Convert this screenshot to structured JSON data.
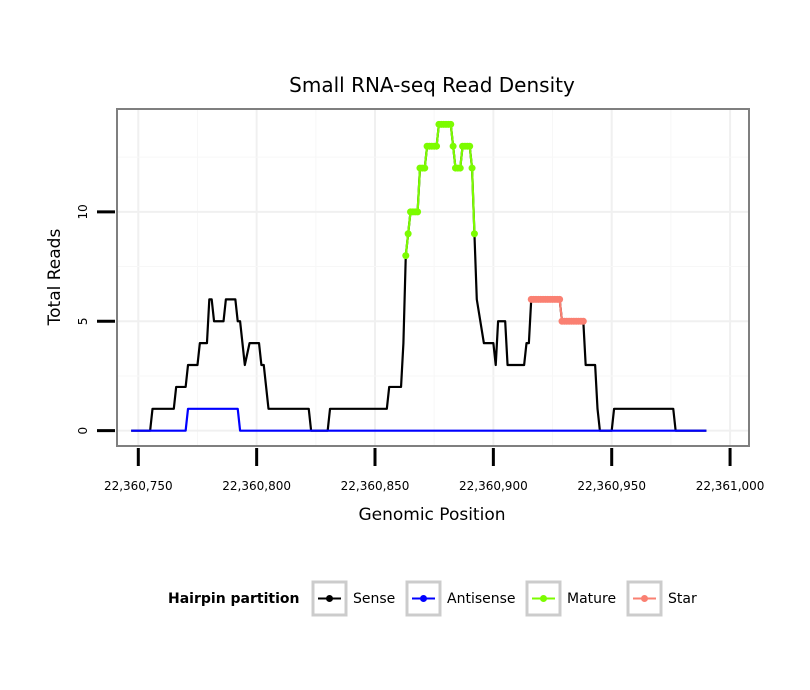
{
  "chart_data": {
    "type": "line",
    "title": "Small RNA-seq Read Density",
    "xlabel": "Genomic Position",
    "ylabel": "Total Reads",
    "xlim": [
      22360741,
      22361008
    ],
    "ylim": [
      -0.7,
      14.7
    ],
    "x_ticks": [
      {
        "value": 22360750,
        "label": "22,360,750"
      },
      {
        "value": 22360800,
        "label": "22,360,800"
      },
      {
        "value": 22360850,
        "label": "22,360,850"
      },
      {
        "value": 22360900,
        "label": "22,360,900"
      },
      {
        "value": 22360950,
        "label": "22,360,950"
      },
      {
        "value": 22361000,
        "label": "22,361,000"
      }
    ],
    "y_ticks": [
      {
        "value": 0,
        "label": "0"
      },
      {
        "value": 5,
        "label": "5"
      },
      {
        "value": 10,
        "label": "10"
      }
    ],
    "grid": true,
    "legend": {
      "title": "Hairpin partition",
      "position": "bottom",
      "entries": [
        {
          "name": "Sense",
          "color": "#000000"
        },
        {
          "name": "Antisense",
          "color": "#0000ff"
        },
        {
          "name": "Mature",
          "color": "#7cfc00"
        },
        {
          "name": "Star",
          "color": "#fa8072"
        }
      ]
    },
    "series": [
      {
        "name": "Sense",
        "color": "#000000",
        "points": [
          [
            22360747,
            0
          ],
          [
            22360755,
            0
          ],
          [
            22360756,
            1
          ],
          [
            22360765,
            1
          ],
          [
            22360766,
            2
          ],
          [
            22360770,
            2
          ],
          [
            22360771,
            3
          ],
          [
            22360775,
            3
          ],
          [
            22360776,
            4
          ],
          [
            22360779,
            4
          ],
          [
            22360780,
            6
          ],
          [
            22360781,
            6
          ],
          [
            22360782,
            5
          ],
          [
            22360786,
            5
          ],
          [
            22360787,
            6
          ],
          [
            22360791,
            6
          ],
          [
            22360792,
            5
          ],
          [
            22360793,
            5
          ],
          [
            22360795,
            3
          ],
          [
            22360797,
            4
          ],
          [
            22360801,
            4
          ],
          [
            22360802,
            3
          ],
          [
            22360803,
            3
          ],
          [
            22360805,
            1
          ],
          [
            22360815,
            1
          ],
          [
            22360822,
            1
          ],
          [
            22360823,
            0
          ],
          [
            22360830,
            0
          ],
          [
            22360831,
            1
          ],
          [
            22360855,
            1
          ],
          [
            22360856,
            2
          ],
          [
            22360861,
            2
          ],
          [
            22360862,
            4
          ],
          [
            22360863,
            8
          ],
          [
            22360864,
            9
          ],
          [
            22360865,
            10
          ],
          [
            22360868,
            10
          ],
          [
            22360869,
            12
          ],
          [
            22360871,
            12
          ],
          [
            22360872,
            13
          ],
          [
            22360876,
            13
          ],
          [
            22360877,
            14
          ],
          [
            22360882,
            14
          ],
          [
            22360883,
            13
          ],
          [
            22360884,
            12
          ],
          [
            22360886,
            12
          ],
          [
            22360887,
            13
          ],
          [
            22360890,
            13
          ],
          [
            22360891,
            12
          ],
          [
            22360892,
            9
          ],
          [
            22360893,
            6
          ],
          [
            22360896,
            4
          ],
          [
            22360900,
            4
          ],
          [
            22360901,
            3
          ],
          [
            22360902,
            5
          ],
          [
            22360905,
            5
          ],
          [
            22360906,
            3
          ],
          [
            22360913,
            3
          ],
          [
            22360914,
            4
          ],
          [
            22360915,
            4
          ],
          [
            22360916,
            6
          ],
          [
            22360928,
            6
          ],
          [
            22360929,
            5
          ],
          [
            22360938,
            5
          ],
          [
            22360939,
            3
          ],
          [
            22360943,
            3
          ],
          [
            22360944,
            1
          ],
          [
            22360945,
            0
          ],
          [
            22360950,
            0
          ],
          [
            22360951,
            1
          ],
          [
            22360976,
            1
          ],
          [
            22360977,
            0
          ],
          [
            22360990,
            0
          ]
        ]
      },
      {
        "name": "Antisense",
        "color": "#0000ff",
        "points": [
          [
            22360747,
            0
          ],
          [
            22360770,
            0
          ],
          [
            22360771,
            1
          ],
          [
            22360792,
            1
          ],
          [
            22360793,
            0
          ],
          [
            22360990,
            0
          ]
        ]
      },
      {
        "name": "Mature",
        "color": "#7cfc00",
        "points": [
          [
            22360863,
            8
          ],
          [
            22360864,
            9
          ],
          [
            22360865,
            10
          ],
          [
            22360866,
            10
          ],
          [
            22360867,
            10
          ],
          [
            22360868,
            10
          ],
          [
            22360869,
            12
          ],
          [
            22360870,
            12
          ],
          [
            22360871,
            12
          ],
          [
            22360872,
            13
          ],
          [
            22360873,
            13
          ],
          [
            22360874,
            13
          ],
          [
            22360875,
            13
          ],
          [
            22360876,
            13
          ],
          [
            22360877,
            14
          ],
          [
            22360878,
            14
          ],
          [
            22360879,
            14
          ],
          [
            22360880,
            14
          ],
          [
            22360881,
            14
          ],
          [
            22360882,
            14
          ],
          [
            22360883,
            13
          ],
          [
            22360884,
            12
          ],
          [
            22360885,
            12
          ],
          [
            22360886,
            12
          ],
          [
            22360887,
            13
          ],
          [
            22360888,
            13
          ],
          [
            22360889,
            13
          ],
          [
            22360890,
            13
          ],
          [
            22360891,
            12
          ],
          [
            22360892,
            9
          ]
        ]
      },
      {
        "name": "Star",
        "color": "#fa8072",
        "points": [
          [
            22360916,
            6
          ],
          [
            22360917,
            6
          ],
          [
            22360918,
            6
          ],
          [
            22360919,
            6
          ],
          [
            22360920,
            6
          ],
          [
            22360921,
            6
          ],
          [
            22360922,
            6
          ],
          [
            22360923,
            6
          ],
          [
            22360924,
            6
          ],
          [
            22360925,
            6
          ],
          [
            22360926,
            6
          ],
          [
            22360927,
            6
          ],
          [
            22360928,
            6
          ],
          [
            22360929,
            5
          ],
          [
            22360930,
            5
          ],
          [
            22360931,
            5
          ],
          [
            22360932,
            5
          ],
          [
            22360933,
            5
          ],
          [
            22360934,
            5
          ],
          [
            22360935,
            5
          ],
          [
            22360936,
            5
          ],
          [
            22360937,
            5
          ],
          [
            22360938,
            5
          ]
        ]
      }
    ]
  }
}
